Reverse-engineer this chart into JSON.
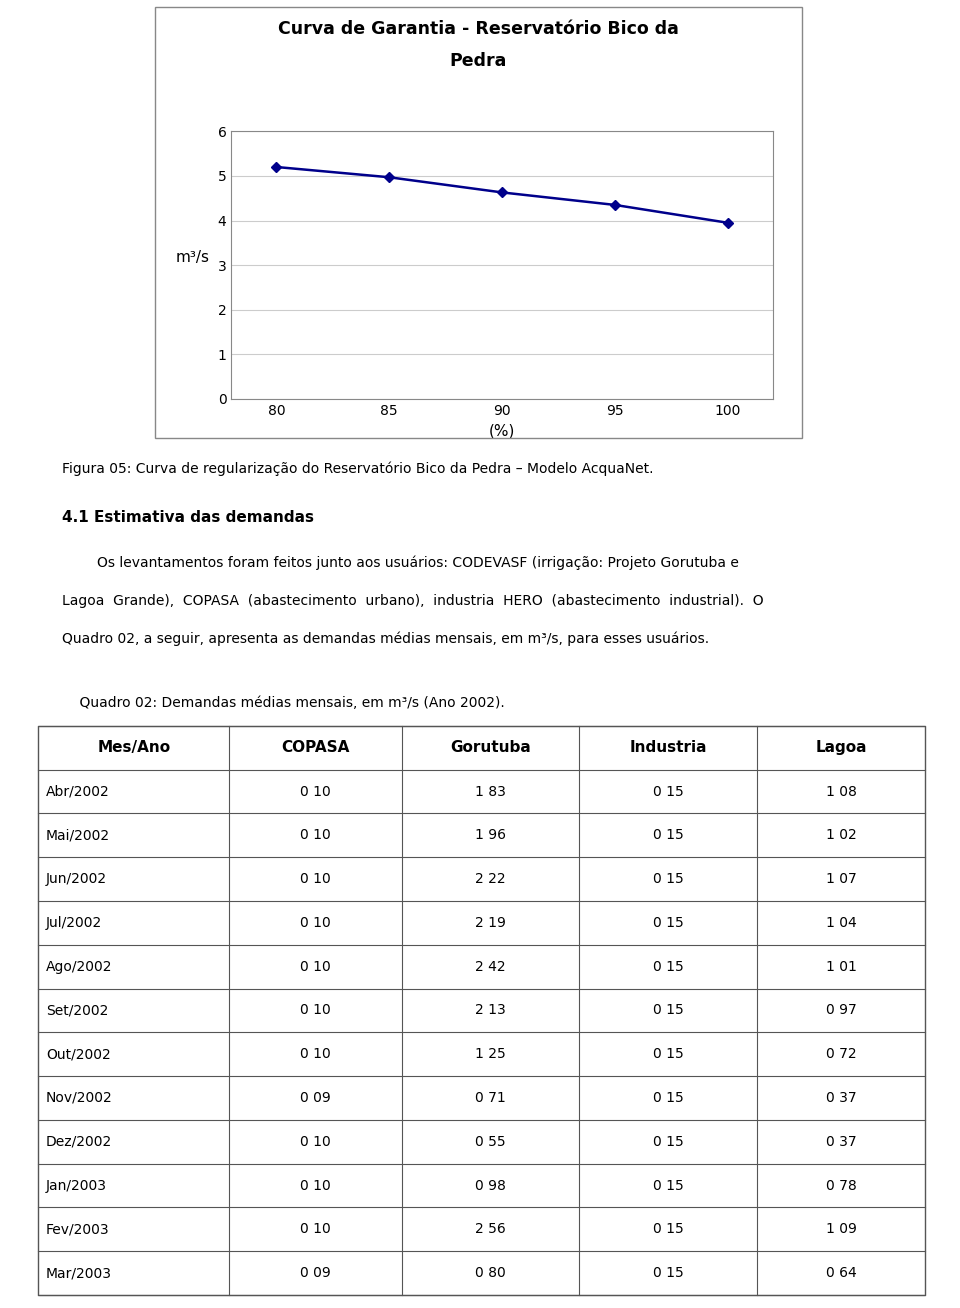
{
  "chart_title_line1": "Curva de Garantia - Reservatório Bico da",
  "chart_title_line2": "Pedra",
  "x_data": [
    80,
    85,
    90,
    95,
    100
  ],
  "y_data": [
    5.2,
    4.97,
    4.63,
    4.35,
    3.95
  ],
  "xlabel": "(%)",
  "ylabel": "m³/s",
  "ylim": [
    0,
    6
  ],
  "yticks": [
    0,
    1,
    2,
    3,
    4,
    5,
    6
  ],
  "xticks": [
    80,
    85,
    90,
    95,
    100
  ],
  "line_color": "#00008B",
  "marker": "D",
  "marker_size": 5,
  "fig_caption": "Figura 05: Curva de regularização do Reservatório Bico da Pedra – Modelo AcquaNet.",
  "section_title": "4.1 Estimativa das demandas",
  "para_line1": "        Os levantamentos foram feitos junto aos usuários: CODEVASF (irrigação: Projeto Gorutuba e",
  "para_line2": "Lagoa  Grande),  COPASA  (abastecimento  urbano),  industria  HERO  (abastecimento  industrial).  O",
  "para_line3": "Quadro 02, a seguir, apresenta as demandas médias mensais, em m³/s, para esses usuários.",
  "table_caption": "    Quadro 02: Demandas médias mensais, em m³/s (Ano 2002).",
  "table_headers": [
    "Mes/Ano",
    "COPASA",
    "Gorutuba",
    "Industria",
    "Lagoa"
  ],
  "table_data": [
    [
      "Abr/2002",
      "0 10",
      "1 83",
      "0 15",
      "1 08"
    ],
    [
      "Mai/2002",
      "0 10",
      "1 96",
      "0 15",
      "1 02"
    ],
    [
      "Jun/2002",
      "0 10",
      "2 22",
      "0 15",
      "1 07"
    ],
    [
      "Jul/2002",
      "0 10",
      "2 19",
      "0 15",
      "1 04"
    ],
    [
      "Ago/2002",
      "0 10",
      "2 42",
      "0 15",
      "1 01"
    ],
    [
      "Set/2002",
      "0 10",
      "2 13",
      "0 15",
      "0 97"
    ],
    [
      "Out/2002",
      "0 10",
      "1 25",
      "0 15",
      "0 72"
    ],
    [
      "Nov/2002",
      "0 09",
      "0 71",
      "0 15",
      "0 37"
    ],
    [
      "Dez/2002",
      "0 10",
      "0 55",
      "0 15",
      "0 37"
    ],
    [
      "Jan/2003",
      "0 10",
      "0 98",
      "0 15",
      "0 78"
    ],
    [
      "Fev/2003",
      "0 10",
      "2 56",
      "0 15",
      "1 09"
    ],
    [
      "Mar/2003",
      "0 09",
      "0 80",
      "0 15",
      "0 64"
    ]
  ],
  "background_color": "#ffffff",
  "grid_color": "#cccccc",
  "border_color": "#888888",
  "table_border_color": "#555555"
}
